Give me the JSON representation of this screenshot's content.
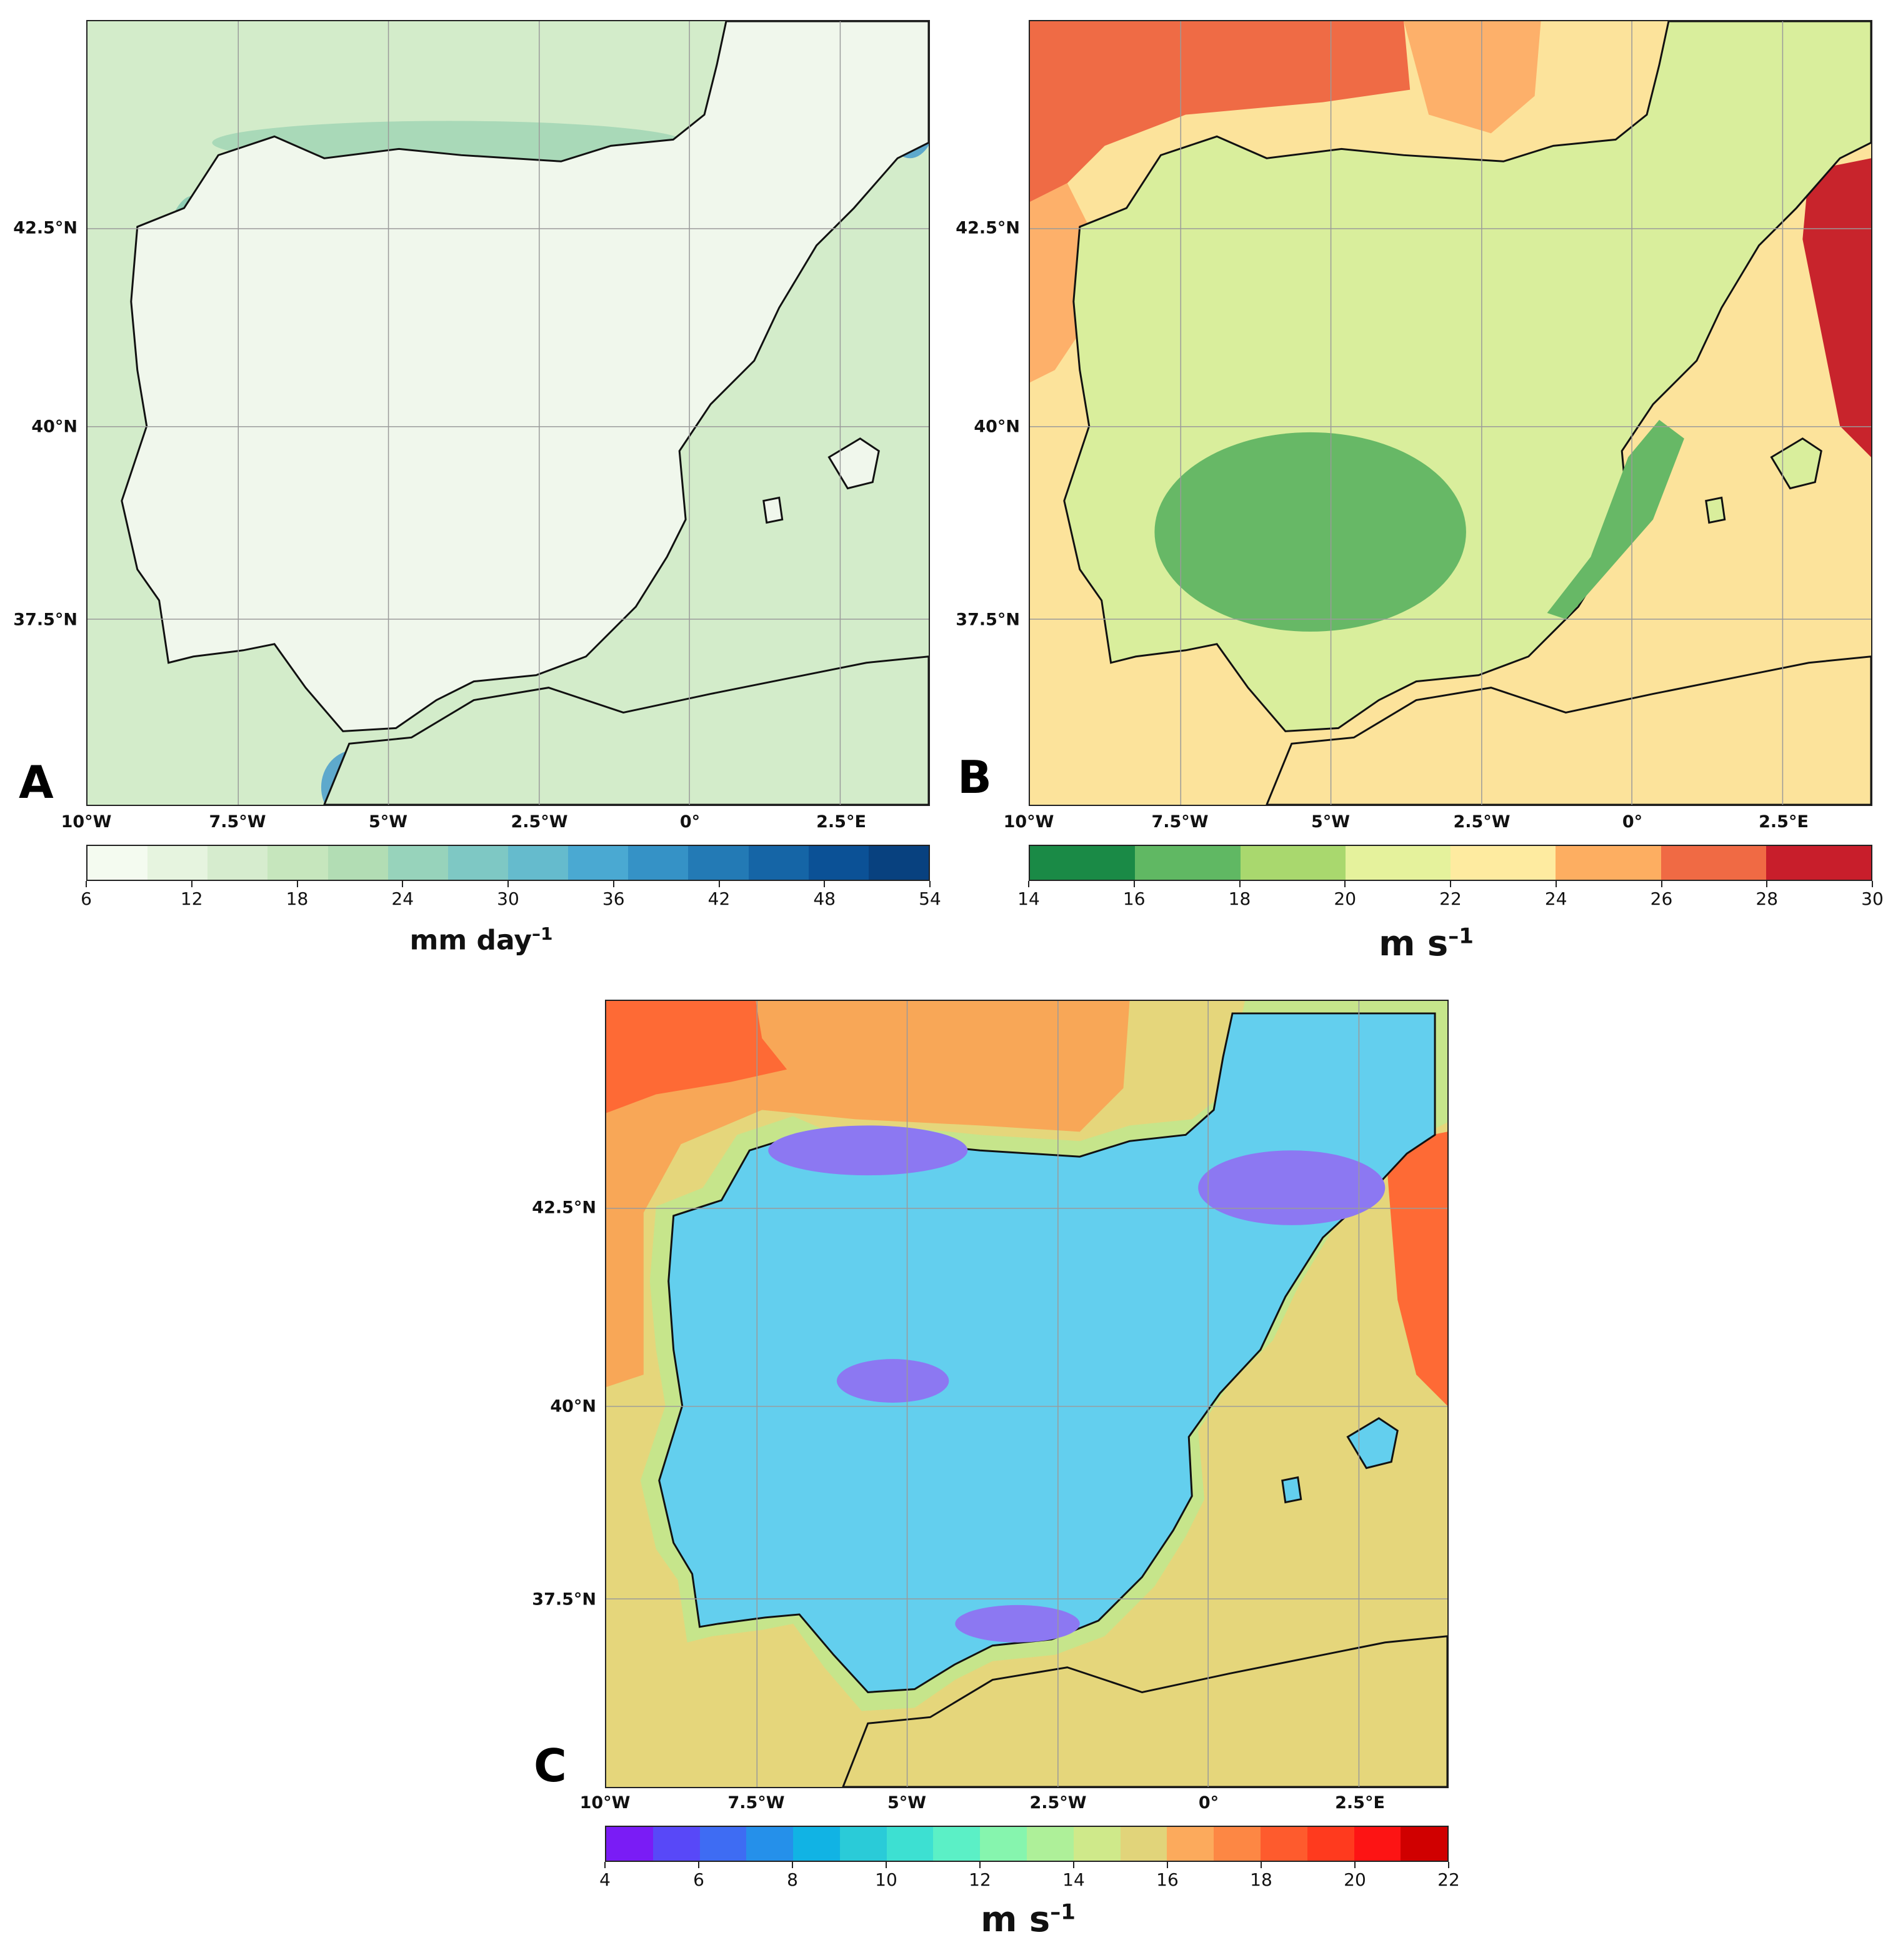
{
  "panels": [
    {
      "id": "A",
      "letter": "A",
      "colorbar": {
        "ticks": [
          "6",
          "12",
          "18",
          "24",
          "30",
          "36",
          "42",
          "48",
          "54"
        ],
        "colors": [
          "#f4fbf0",
          "#e6f4df",
          "#d6ecce",
          "#c6e6bd",
          "#b2ddb4",
          "#97d3bb",
          "#7ec8c4",
          "#65bbcd",
          "#4aa9d2",
          "#3592c6",
          "#237ab5",
          "#1565a6",
          "#0b5196",
          "#08417f"
        ],
        "unit_text": "mm day",
        "unit_sup": "–1"
      },
      "land_color": "#f0f7ec",
      "sea_color": "#d3ecca",
      "accents": [
        "#8fcdb4",
        "#5ea9cc",
        "#a9d9b8"
      ]
    },
    {
      "id": "B",
      "letter": "B",
      "colorbar": {
        "ticks": [
          "14",
          "16",
          "18",
          "20",
          "22",
          "24",
          "26",
          "28",
          "30"
        ],
        "colors": [
          "#1a8a46",
          "#60b863",
          "#a9d86e",
          "#e5f29c",
          "#feeba0",
          "#fdae61",
          "#f06a44",
          "#c81e2b"
        ],
        "unit_text": "m s",
        "unit_sup": "–1"
      },
      "land_color": "#d9ee9c",
      "sea_color": "#fce39b",
      "accents": [
        "#ef6b45",
        "#fdb06a",
        "#67b866",
        "#c8242c"
      ]
    },
    {
      "id": "C",
      "letter": "C",
      "colorbar": {
        "ticks": [
          "4",
          "6",
          "8",
          "10",
          "12",
          "14",
          "16",
          "18",
          "20",
          "22"
        ],
        "colors": [
          "#7a1cf5",
          "#5848f8",
          "#3e6cf3",
          "#2590ea",
          "#11b3e4",
          "#2acbd8",
          "#3de0d2",
          "#5bf0c6",
          "#86f5ae",
          "#aef099",
          "#cfe98a",
          "#e1d47a",
          "#fcaa5c",
          "#fd8744",
          "#fe5b2d",
          "#ff3a1e",
          "#fd1414",
          "#d00000"
        ],
        "unit_text": "m s",
        "unit_sup": "–1"
      },
      "land_color": "#63cfee",
      "sea_color": "#e5d67b",
      "accents": [
        "#fe6a35",
        "#f8a757",
        "#8c78f2",
        "#c6e58b"
      ]
    }
  ],
  "axes": {
    "lon_labels": [
      "10°W",
      "7.5°W",
      "5°W",
      "2.5°W",
      "0°",
      "2.5°E"
    ],
    "lat_labels": [
      "42.5°N",
      "40°N",
      "37.5°N"
    ]
  }
}
